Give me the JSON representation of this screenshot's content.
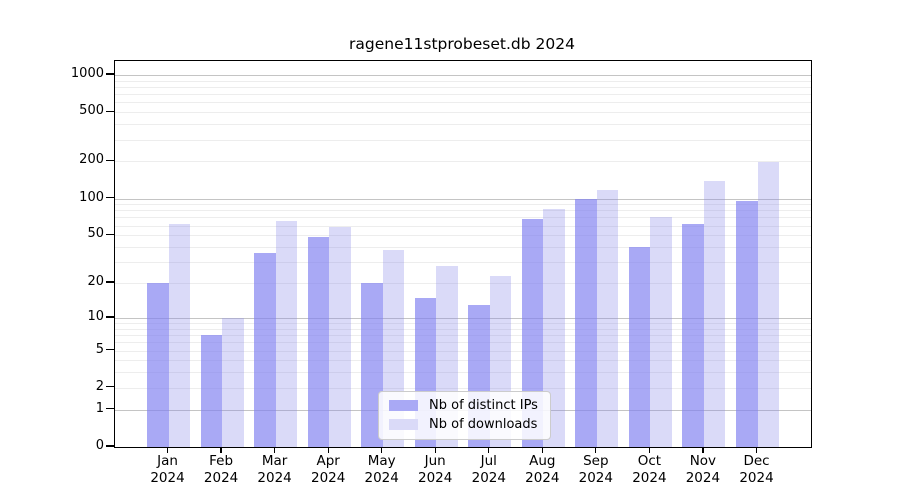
{
  "chart_data": {
    "type": "bar",
    "title": "ragene11stprobeset.db 2024",
    "year_label": "2024",
    "categories": [
      "Jan",
      "Feb",
      "Mar",
      "Apr",
      "May",
      "Jun",
      "Jul",
      "Aug",
      "Sep",
      "Oct",
      "Nov",
      "Dec"
    ],
    "series": [
      {
        "name": "Nb of distinct IPs",
        "color": "rgba(128,128,240,0.68)",
        "swatch_color": "#a9a9f5",
        "values": [
          20,
          7,
          36,
          48,
          20,
          15,
          13,
          68,
          100,
          40,
          62,
          95
        ]
      },
      {
        "name": "Nb of downloads",
        "color": "rgba(132,132,232,0.30)",
        "swatch_color": "#dadaf8",
        "values": [
          62,
          10,
          66,
          58,
          38,
          28,
          23,
          82,
          117,
          71,
          139,
          197
        ]
      }
    ],
    "y_axis": {
      "scale": "log1p",
      "tick_values": [
        0,
        1,
        2,
        5,
        10,
        20,
        50,
        100,
        200,
        500,
        1000
      ],
      "major_gridline_values": [
        1,
        10,
        100,
        1000
      ],
      "ylim": [
        0,
        1300
      ]
    },
    "x_axis": {
      "tick_line1": [
        "Jan",
        "Feb",
        "Mar",
        "Apr",
        "May",
        "Jun",
        "Jul",
        "Aug",
        "Sep",
        "Oct",
        "Nov",
        "Dec"
      ],
      "tick_line2": "2024"
    },
    "grid": "horizontal",
    "legend_position": "bottom-center",
    "colors": {
      "major_grid": "#c4c4c4",
      "minor_grid": "#ededed",
      "spine": "#000000"
    }
  }
}
